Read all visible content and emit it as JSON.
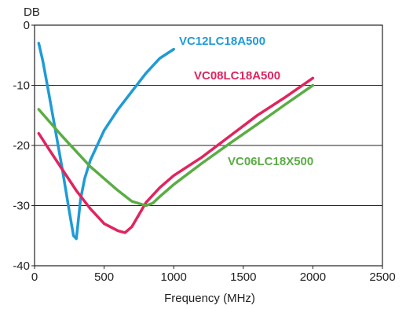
{
  "chart_data": {
    "type": "line",
    "title": "",
    "xlabel": "Frequency (MHz)",
    "ylabel": "DB",
    "xlim": [
      0,
      2500
    ],
    "ylim": [
      -40,
      0
    ],
    "xticks": [
      0,
      500,
      1000,
      1500,
      2000,
      2500
    ],
    "yticks": [
      0,
      -10,
      -20,
      -30,
      -40
    ],
    "grid": "horizontal",
    "legend": "inline labels",
    "series": [
      {
        "name": "VC12LC18A500",
        "color": "#1f9bd7",
        "x": [
          30,
          60,
          100,
          150,
          200,
          250,
          280,
          300,
          310,
          330,
          360,
          400,
          450,
          500,
          600,
          700,
          800,
          900,
          1000
        ],
        "y": [
          -3,
          -6,
          -11,
          -17.5,
          -24,
          -31,
          -35,
          -35.5,
          -33.5,
          -29,
          -25.5,
          -22.5,
          -20,
          -17.5,
          -14,
          -11,
          -8,
          -5.5,
          -4
        ]
      },
      {
        "name": "VC08LC18A500",
        "color": "#e0245e",
        "x": [
          30,
          100,
          200,
          300,
          400,
          500,
          600,
          650,
          700,
          800,
          900,
          1000,
          1200,
          1400,
          1600,
          1800,
          2000
        ],
        "y": [
          -18,
          -20.5,
          -24,
          -27.5,
          -30.5,
          -33,
          -34.2,
          -34.5,
          -33.5,
          -29.5,
          -27,
          -25,
          -22,
          -18.5,
          -15,
          -12,
          -8.8
        ]
      },
      {
        "name": "VC06LC18X500",
        "color": "#5aad44",
        "x": [
          30,
          200,
          400,
          600,
          700,
          800,
          850,
          900,
          1000,
          1200,
          1400,
          1600,
          1800,
          2000
        ],
        "y": [
          -14,
          -18.5,
          -23.5,
          -27.5,
          -29.3,
          -30,
          -29.6,
          -28.5,
          -26.5,
          -23,
          -19.7,
          -16.5,
          -13.2,
          -10
        ]
      }
    ]
  },
  "series_labels": [
    {
      "series": 0,
      "text": "VC12LC18A500"
    },
    {
      "series": 1,
      "text": "VC08LC18A500"
    },
    {
      "series": 2,
      "text": "VC06LC18X500"
    }
  ]
}
